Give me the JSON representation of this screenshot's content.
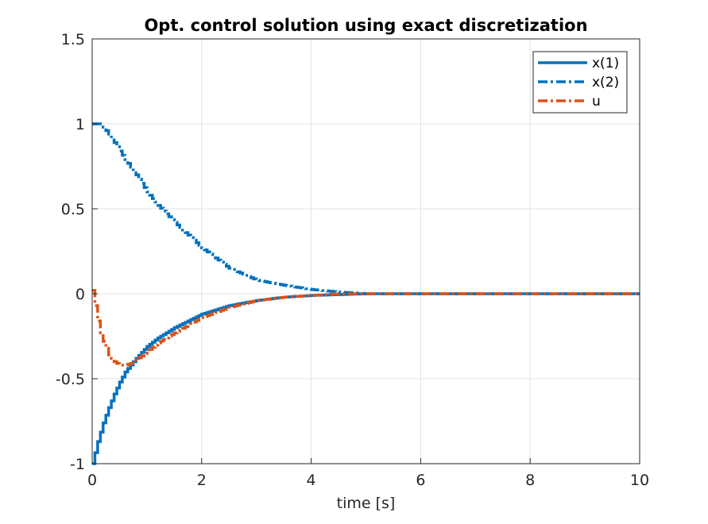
{
  "chart_data": {
    "type": "line",
    "title": "Opt. control solution using exact discretization",
    "xlabel": "time [s]",
    "ylabel": "",
    "xlim": [
      0,
      10
    ],
    "ylim": [
      -1,
      1.5
    ],
    "x_ticks": [
      "0",
      "2",
      "4",
      "6",
      "8",
      "10"
    ],
    "y_ticks": [
      "-1",
      "-0.5",
      "0",
      "0.5",
      "1",
      "1.5"
    ],
    "grid": true,
    "legend_position": "top-right",
    "step": 0.05,
    "series": [
      {
        "name": "x(1)",
        "color": "#0072BD",
        "style": "solid-stairs",
        "x": [
          0,
          0.1,
          0.2,
          0.3,
          0.4,
          0.5,
          0.6,
          0.8,
          1.0,
          1.2,
          1.5,
          2.0,
          2.5,
          3.0,
          3.5,
          4.0,
          4.5,
          5.0,
          6.0,
          8.0,
          10.0
        ],
        "values": [
          -1.0,
          -0.87,
          -0.76,
          -0.67,
          -0.59,
          -0.52,
          -0.46,
          -0.38,
          -0.31,
          -0.26,
          -0.2,
          -0.12,
          -0.07,
          -0.04,
          -0.02,
          -0.01,
          -0.005,
          0,
          0,
          0,
          0
        ]
      },
      {
        "name": "x(2)",
        "color": "#0072BD",
        "style": "dashdot-stairs",
        "x": [
          0,
          0.1,
          0.2,
          0.3,
          0.4,
          0.5,
          0.6,
          0.8,
          1.0,
          1.2,
          1.5,
          2.0,
          2.5,
          3.0,
          3.5,
          4.0,
          4.5,
          5.0,
          6.0,
          8.0,
          10.0
        ],
        "values": [
          1.0,
          1.0,
          0.98,
          0.94,
          0.89,
          0.84,
          0.79,
          0.7,
          0.6,
          0.52,
          0.42,
          0.27,
          0.15,
          0.08,
          0.05,
          0.025,
          0.01,
          0,
          0,
          0,
          0
        ]
      },
      {
        "name": "u",
        "color": "#D95319",
        "style": "dashdot-stairs",
        "x": [
          0,
          0.05,
          0.1,
          0.15,
          0.2,
          0.3,
          0.4,
          0.5,
          0.6,
          0.7,
          0.8,
          1.0,
          1.2,
          1.5,
          2.0,
          2.5,
          3.0,
          3.5,
          4.0,
          4.5,
          5.0,
          6.0,
          8.0,
          10.0
        ],
        "values": [
          0.02,
          -0.07,
          -0.16,
          -0.23,
          -0.28,
          -0.36,
          -0.4,
          -0.42,
          -0.42,
          -0.41,
          -0.39,
          -0.34,
          -0.29,
          -0.23,
          -0.14,
          -0.08,
          -0.04,
          -0.02,
          -0.01,
          0,
          0,
          0,
          0,
          0
        ]
      }
    ]
  }
}
